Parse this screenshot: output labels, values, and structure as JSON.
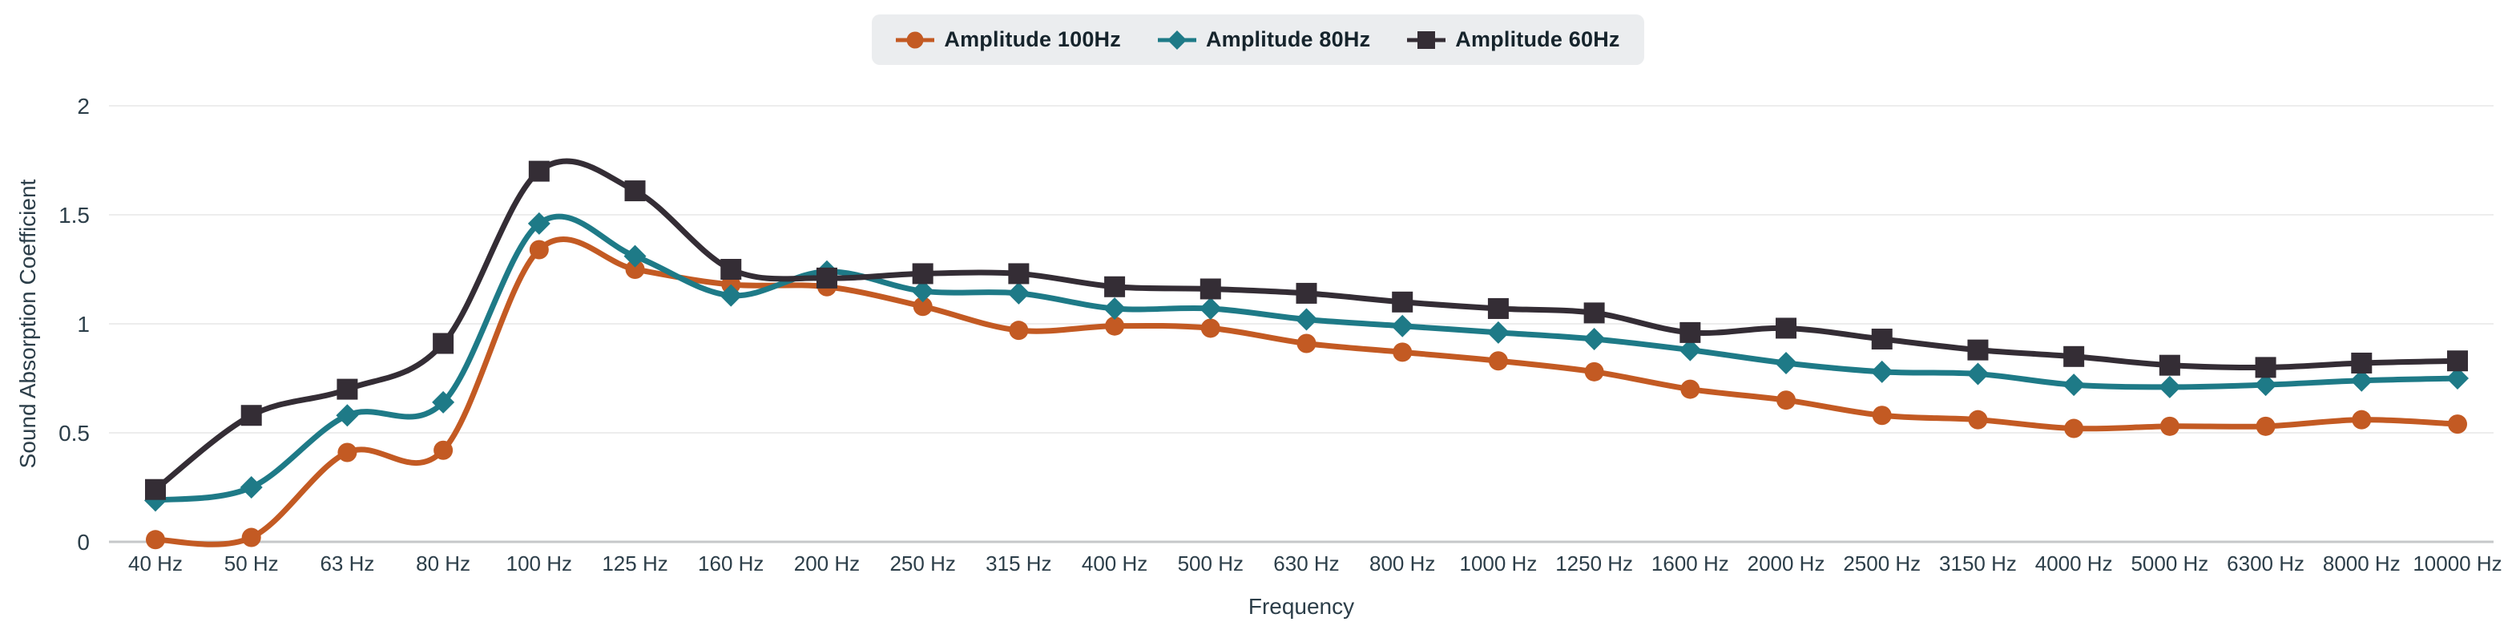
{
  "legend": {
    "position": "top-center",
    "background": "#ebedef"
  },
  "chart_data": {
    "type": "line",
    "smooth": true,
    "grid": true,
    "legend_position": "top",
    "title": "",
    "xlabel": "Frequency",
    "ylabel": "Sound Absorption Coefficient",
    "ylim": [
      0,
      2
    ],
    "yticks": [
      "0",
      "0.5",
      "1",
      "1.5",
      "2"
    ],
    "ytick_values": [
      0,
      0.5,
      1,
      1.5,
      2
    ],
    "categories": [
      "40 Hz",
      "50 Hz",
      "63 Hz",
      "80 Hz",
      "100 Hz",
      "125 Hz",
      "160 Hz",
      "200 Hz",
      "250 Hz",
      "315 Hz",
      "400 Hz",
      "500 Hz",
      "630 Hz",
      "800 Hz",
      "1000 Hz",
      "1250 Hz",
      "1600 Hz",
      "2000 Hz",
      "2500 Hz",
      "3150 Hz",
      "4000 Hz",
      "5000 Hz",
      "6300 Hz",
      "8000 Hz",
      "10000 Hz"
    ],
    "series": [
      {
        "name": "Amplitude 100Hz",
        "color": "#c35a23",
        "marker": "circle",
        "values": [
          0.01,
          0.02,
          0.41,
          0.42,
          1.34,
          1.25,
          1.18,
          1.17,
          1.08,
          0.97,
          0.99,
          0.98,
          0.91,
          0.87,
          0.83,
          0.78,
          0.7,
          0.65,
          0.58,
          0.56,
          0.52,
          0.53,
          0.53,
          0.56,
          0.54
        ]
      },
      {
        "name": "Amplitude 80Hz",
        "color": "#1e7a87",
        "marker": "diamond",
        "values": [
          0.19,
          0.25,
          0.58,
          0.64,
          1.46,
          1.31,
          1.13,
          1.24,
          1.15,
          1.14,
          1.07,
          1.07,
          1.02,
          0.99,
          0.96,
          0.93,
          0.88,
          0.82,
          0.78,
          0.77,
          0.72,
          0.71,
          0.72,
          0.74,
          0.75
        ]
      },
      {
        "name": "Amplitude 60Hz",
        "color": "#342d35",
        "marker": "square",
        "values": [
          0.24,
          0.58,
          0.7,
          0.91,
          1.7,
          1.61,
          1.25,
          1.21,
          1.23,
          1.23,
          1.17,
          1.16,
          1.14,
          1.1,
          1.07,
          1.05,
          0.96,
          0.98,
          0.93,
          0.88,
          0.85,
          0.81,
          0.8,
          0.82,
          0.83
        ]
      }
    ]
  },
  "colors": {
    "axis_text": "#2c3e49",
    "grid_line": "#ededed",
    "zero_line": "#c6c8ca",
    "background": "#ffffff"
  }
}
